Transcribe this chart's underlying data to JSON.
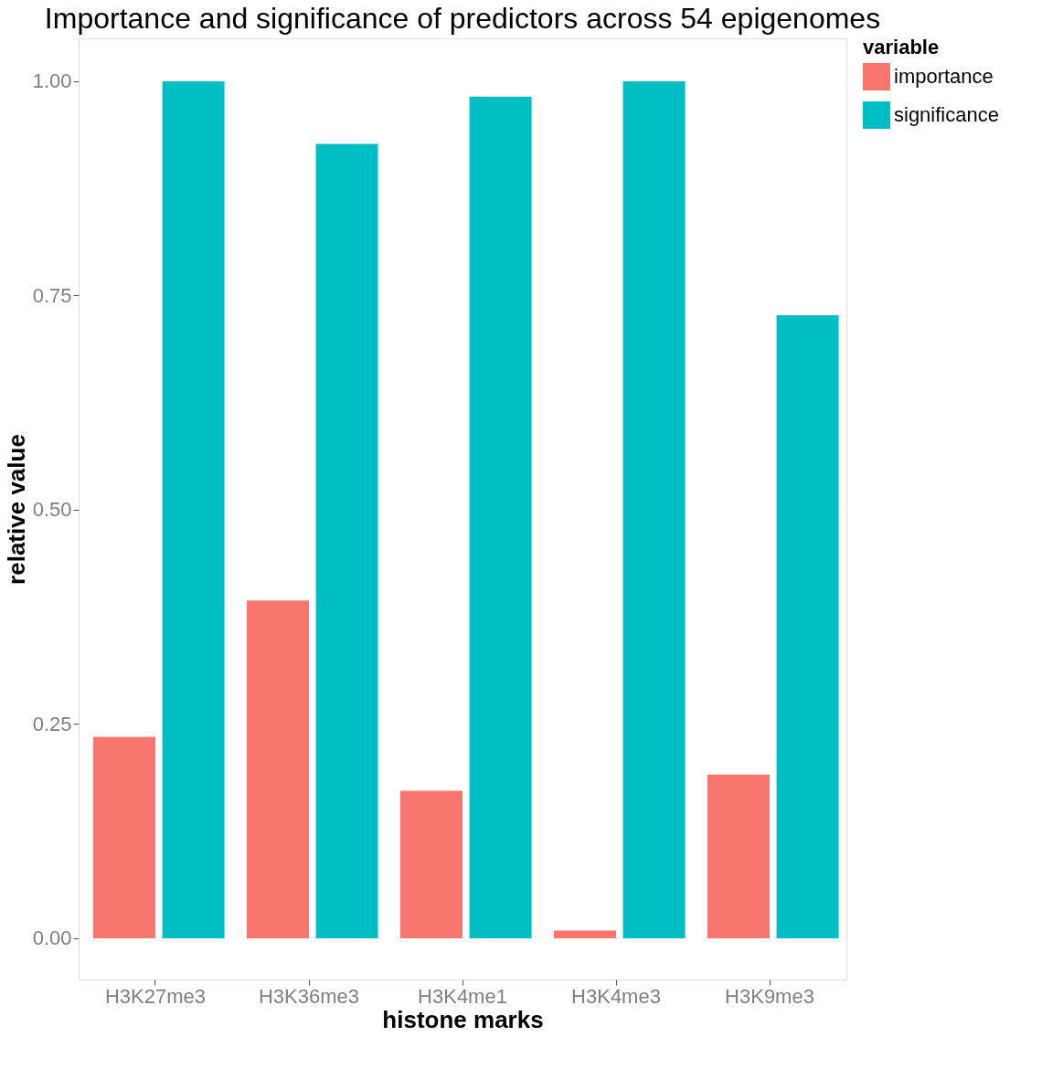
{
  "chart_data": {
    "type": "bar",
    "title": "Importance and significance of predictors across 54 epigenomes",
    "xlabel": "histone marks",
    "ylabel": "relative value",
    "legend_title": "variable",
    "categories": [
      "H3K27me3",
      "H3K36me3",
      "H3K4me1",
      "H3K4me3",
      "H3K9me3"
    ],
    "series": [
      {
        "name": "importance",
        "color": "#f8766d",
        "values": [
          0.235,
          0.394,
          0.172,
          0.009,
          0.191
        ]
      },
      {
        "name": "significance",
        "color": "#00bfc4",
        "values": [
          1.0,
          0.927,
          0.982,
          1.0,
          0.727
        ]
      }
    ],
    "ylim": [
      -0.048,
      1.05
    ],
    "yticks": [
      {
        "value": 0,
        "label": "0.00"
      },
      {
        "value": 0.25,
        "label": "0.25"
      },
      {
        "value": 0.5,
        "label": "0.50"
      },
      {
        "value": 0.75,
        "label": "0.75"
      },
      {
        "value": 1,
        "label": "1.00"
      }
    ],
    "grid": true,
    "legend": "right"
  }
}
